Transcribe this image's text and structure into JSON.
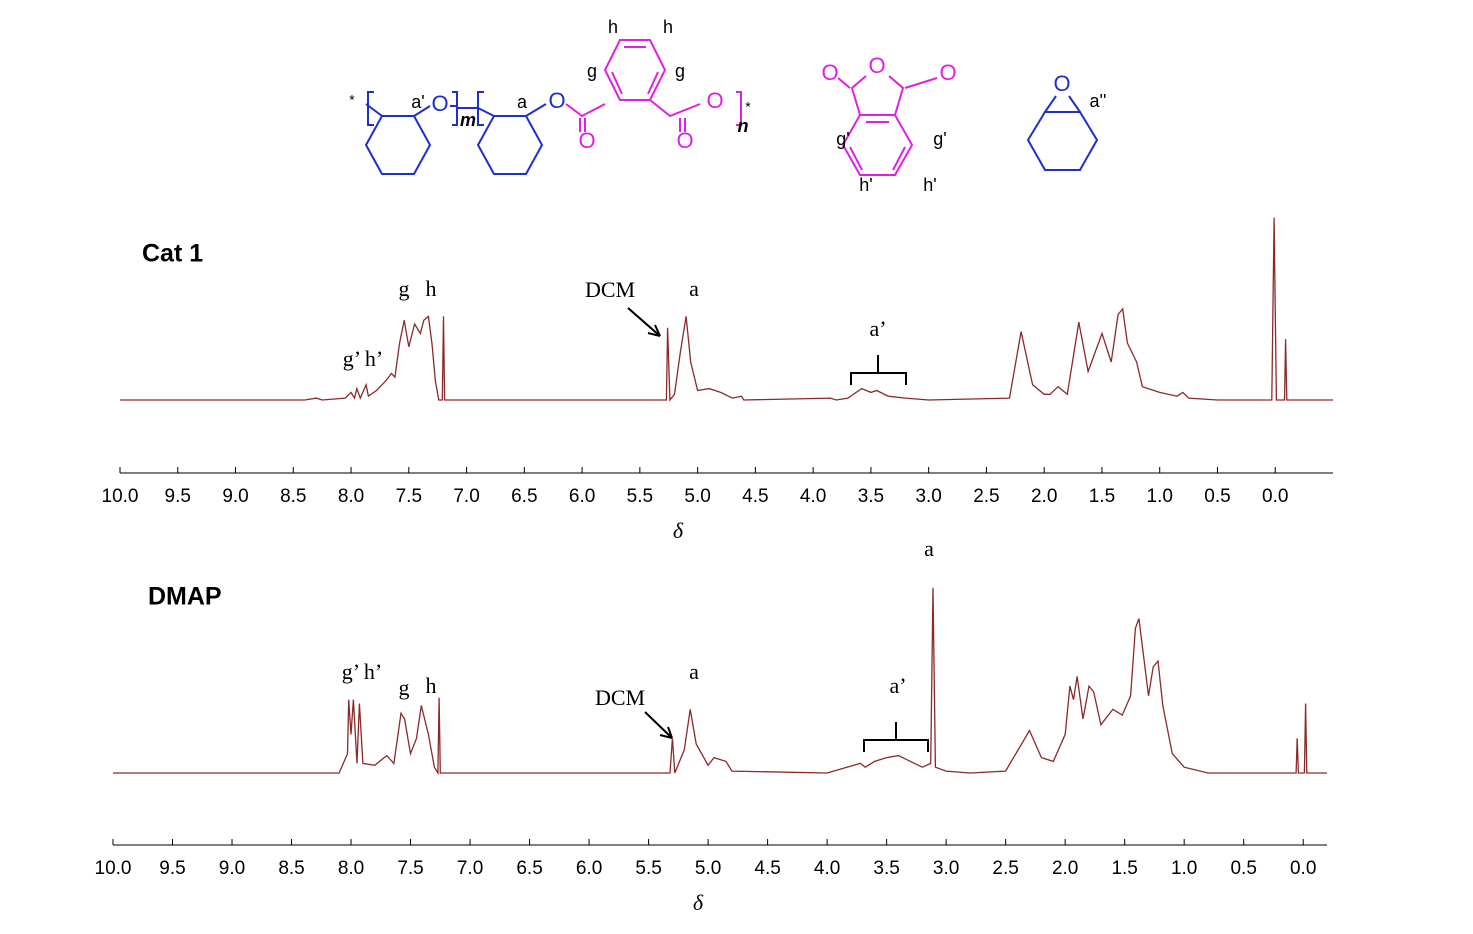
{
  "structures": {
    "polymer": [
      "*",
      "a'",
      "O",
      "m",
      "a",
      "O",
      "O",
      "O",
      "O",
      "h",
      "h",
      "g",
      "g",
      "n",
      "*"
    ],
    "anhydride": [
      "O",
      "O",
      "O",
      "g'",
      "g'",
      "h'",
      "h'"
    ],
    "epoxide": [
      "O",
      "a''"
    ]
  },
  "chart_data": [
    {
      "type": "line",
      "title": "Cat 1",
      "xlabel": "δ",
      "color": "#8b2a2a",
      "xlim": [
        10.0,
        -0.5
      ],
      "ylim": [
        0,
        100
      ],
      "xticks": [
        {
          "value": 10,
          "label": "10.0"
        },
        9.5,
        {
          "value": 9,
          "label": "9.0"
        },
        8.5,
        {
          "value": 8,
          "label": "8.0"
        },
        7.5,
        {
          "value": 7,
          "label": "7.0"
        },
        6.5,
        {
          "value": 6,
          "label": "6.0"
        },
        5.5,
        {
          "value": 5,
          "label": "5.0"
        },
        4.5,
        {
          "value": 4,
          "label": "4.0"
        },
        3.5,
        {
          "value": 3,
          "label": "3.0"
        },
        2.5,
        {
          "value": 2,
          "label": "2.0"
        },
        1.5,
        {
          "value": 1,
          "label": "1.0"
        },
        0.5,
        {
          "value": 0,
          "label": "0.0"
        }
      ],
      "annotations": [
        "g",
        "h",
        "g’ h’",
        "DCM",
        "a",
        "a’"
      ],
      "x": [
        10.0,
        8.4,
        8.3,
        8.25,
        8.05,
        8.0,
        7.97,
        7.95,
        7.92,
        7.87,
        7.85,
        7.78,
        7.7,
        7.65,
        7.62,
        7.58,
        7.54,
        7.5,
        7.45,
        7.4,
        7.37,
        7.33,
        7.3,
        7.27,
        7.24,
        7.21,
        7.2,
        7.19,
        6.0,
        5.27,
        5.26,
        5.24,
        5.2,
        5.15,
        5.1,
        5.06,
        5.0,
        4.9,
        4.8,
        4.7,
        4.62,
        4.6,
        3.85,
        3.8,
        3.7,
        3.58,
        3.5,
        3.45,
        3.35,
        3.2,
        3.0,
        2.3,
        2.2,
        2.1,
        2.0,
        1.95,
        1.88,
        1.8,
        1.7,
        1.62,
        1.5,
        1.42,
        1.36,
        1.32,
        1.28,
        1.2,
        1.15,
        1.0,
        0.85,
        0.8,
        0.75,
        0.5,
        0.03,
        0.01,
        -0.01,
        -0.08,
        -0.09,
        -0.1,
        -0.5
      ],
      "values": [
        0,
        0,
        1,
        0,
        1,
        4,
        1,
        6,
        1,
        8,
        2,
        5,
        10,
        14,
        12,
        30,
        42,
        28,
        40,
        35,
        42,
        44,
        30,
        10,
        0,
        0,
        44,
        0,
        0,
        0,
        38,
        0,
        3,
        25,
        44,
        20,
        5,
        6,
        4,
        1,
        2,
        0,
        1,
        0,
        1,
        6,
        4,
        5,
        2,
        1,
        0,
        1,
        36,
        8,
        3,
        3,
        7,
        3,
        41,
        15,
        35,
        20,
        45,
        48,
        30,
        20,
        7,
        4,
        2,
        4,
        1,
        0,
        0,
        96,
        0,
        0,
        32,
        0,
        0
      ]
    },
    {
      "type": "line",
      "title": "DMAP",
      "xlabel": "δ",
      "color": "#8b2a2a",
      "xlim": [
        10.0,
        -0.2
      ],
      "ylim": [
        0,
        100
      ],
      "xticks": [
        {
          "value": 10,
          "label": "10.0"
        },
        9.5,
        {
          "value": 9,
          "label": "9.0"
        },
        8.5,
        {
          "value": 8,
          "label": "8.0"
        },
        7.5,
        {
          "value": 7,
          "label": "7.0"
        },
        6.5,
        {
          "value": 6,
          "label": "6.0"
        },
        5.5,
        {
          "value": 5,
          "label": "5.0"
        },
        4.5,
        {
          "value": 4,
          "label": "4.0"
        },
        3.5,
        {
          "value": 3,
          "label": "3.0"
        },
        2.5,
        {
          "value": 2,
          "label": "2.0"
        },
        1.5,
        {
          "value": 1,
          "label": "1.0"
        },
        0.5,
        {
          "value": 0,
          "label": "0.0"
        }
      ],
      "annotations": [
        "a",
        "g’ h’",
        "g",
        "h",
        "DCM",
        "a",
        "a’"
      ],
      "x": [
        10.0,
        8.1,
        8.03,
        8.02,
        8.0,
        7.98,
        7.95,
        7.93,
        7.9,
        7.8,
        7.7,
        7.64,
        7.58,
        7.55,
        7.5,
        7.45,
        7.41,
        7.35,
        7.3,
        7.27,
        7.26,
        7.25,
        6.0,
        5.32,
        5.3,
        5.28,
        5.2,
        5.15,
        5.1,
        5.0,
        4.95,
        4.85,
        4.8,
        4.0,
        3.72,
        3.68,
        3.6,
        3.5,
        3.4,
        3.3,
        3.2,
        3.13,
        3.11,
        3.09,
        3.0,
        2.8,
        2.5,
        2.3,
        2.2,
        2.1,
        2.0,
        1.96,
        1.93,
        1.9,
        1.85,
        1.8,
        1.76,
        1.7,
        1.6,
        1.52,
        1.45,
        1.41,
        1.38,
        1.35,
        1.3,
        1.26,
        1.22,
        1.18,
        1.1,
        1.0,
        0.8,
        0.06,
        0.05,
        0.04,
        -0.01,
        -0.02,
        -0.03,
        -0.2
      ],
      "values": [
        0,
        0,
        10,
        38,
        20,
        38,
        5,
        36,
        5,
        4,
        9,
        5,
        31,
        28,
        10,
        18,
        35,
        20,
        3,
        0,
        39,
        0,
        0,
        0,
        18,
        0,
        12,
        33,
        15,
        4,
        8,
        6,
        1,
        0,
        5,
        3,
        6,
        8,
        9,
        6,
        3,
        5,
        96,
        3,
        1,
        0,
        1,
        22,
        8,
        6,
        20,
        45,
        38,
        50,
        28,
        45,
        42,
        25,
        33,
        30,
        40,
        75,
        80,
        65,
        40,
        55,
        58,
        35,
        10,
        3,
        0,
        0,
        18,
        0,
        0,
        36,
        0,
        0
      ]
    }
  ]
}
